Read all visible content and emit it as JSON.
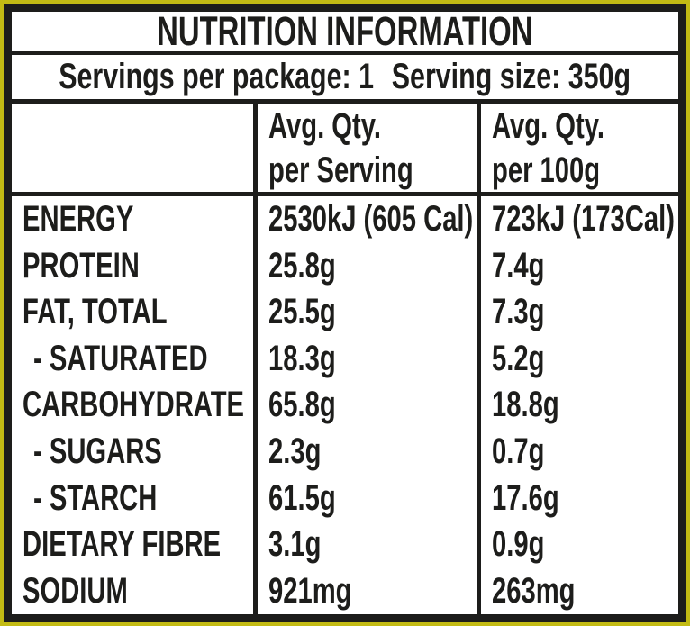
{
  "label": {
    "title": "NUTRITION INFORMATION",
    "servings_line": {
      "servings_per_package": "Servings per package: 1",
      "serving_size": "Serving size: 350g"
    },
    "columns": {
      "nutrient_header": "",
      "per_serving_line1": "Avg. Qty.",
      "per_serving_line2": "per Serving",
      "per_100g_line1": "Avg. Qty.",
      "per_100g_line2": "per 100g"
    },
    "rows": [
      {
        "label": "ENERGY",
        "per_serving": "2530kJ (605 Cal)",
        "per_100g": "723kJ (173Cal)"
      },
      {
        "label": "PROTEIN",
        "per_serving": "25.8g",
        "per_100g": "7.4g"
      },
      {
        "label": "FAT, TOTAL",
        "per_serving": "25.5g",
        "per_100g": "7.3g"
      },
      {
        "label": "- SATURATED",
        "per_serving": "18.3g",
        "per_100g": "5.2g"
      },
      {
        "label": "CARBOHYDRATE",
        "per_serving": "65.8g",
        "per_100g": "18.8g"
      },
      {
        "label": "- SUGARS",
        "per_serving": "2.3g",
        "per_100g": "0.7g"
      },
      {
        "label": "- STARCH",
        "per_serving": "61.5g",
        "per_100g": "17.6g"
      },
      {
        "label": "DIETARY FIBRE",
        "per_serving": "3.1g",
        "per_100g": "0.9g"
      },
      {
        "label": "SODIUM",
        "per_serving": "921mg",
        "per_100g": "263mg"
      }
    ],
    "colors": {
      "outer_border": "#c3bb14",
      "ink": "#1d1d1b",
      "background": "#ffffff"
    }
  }
}
